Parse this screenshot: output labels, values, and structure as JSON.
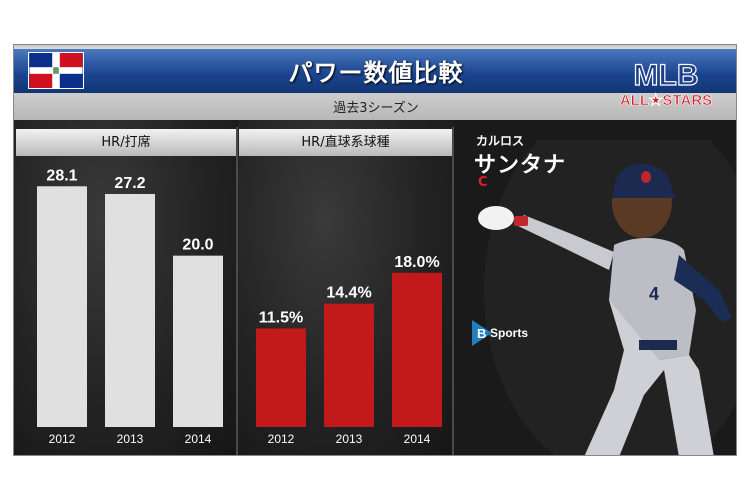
{
  "header": {
    "title": "パワー数値比較",
    "subtitle": "過去3シーズン",
    "flag_icon": "dominican-republic-flag-icon",
    "logo_icon": "mlb-all-stars-logo"
  },
  "player": {
    "name_kana": "カルロス",
    "name": "サンタナ",
    "position": "C"
  },
  "brand": {
    "label": "Sports",
    "initial": "B"
  },
  "chart_data": [
    {
      "type": "bar",
      "title": "HR/打席",
      "categories": [
        "2012",
        "2013",
        "2014"
      ],
      "values": [
        28.1,
        27.2,
        20.0
      ],
      "value_labels": [
        "28.1",
        "27.2",
        "20.0"
      ],
      "bar_color": "#e0e0e0",
      "ylim": [
        0,
        30
      ]
    },
    {
      "type": "bar",
      "title": "HR/直球系球種",
      "categories": [
        "2012",
        "2013",
        "2014"
      ],
      "values": [
        11.5,
        14.4,
        18.0
      ],
      "value_labels": [
        "11.5%",
        "14.4%",
        "18.0%"
      ],
      "bar_color": "#c21a1a",
      "ylim": [
        0,
        30
      ]
    }
  ]
}
